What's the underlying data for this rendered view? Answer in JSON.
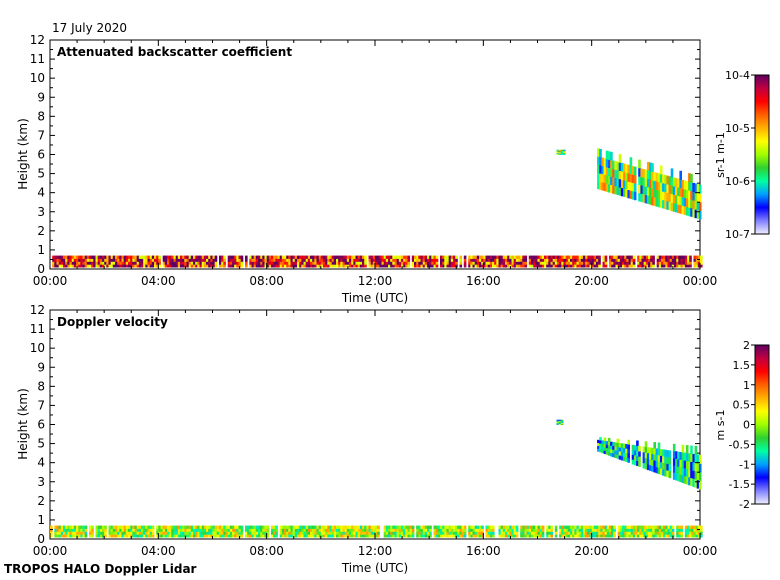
{
  "header": {
    "date": "17 July 2020"
  },
  "footer": {
    "instrument": "TROPOS HALO Doppler Lidar"
  },
  "colors": {
    "rainbow": [
      "#f0f0ff",
      "#7f7fff",
      "#0000ff",
      "#00a0ff",
      "#00ffa0",
      "#30d030",
      "#a0ff00",
      "#ffff00",
      "#ffb000",
      "#ff6000",
      "#ff0000",
      "#c00040",
      "#600060"
    ]
  },
  "chart_data": [
    {
      "type": "heatmap",
      "title": "Attenuated backscatter coefficient",
      "xlabel": "Time (UTC)",
      "ylabel": "Height (km)",
      "xlim": [
        0,
        24
      ],
      "ylim": [
        0,
        12
      ],
      "x_ticks": [
        "00:00",
        "04:00",
        "08:00",
        "12:00",
        "16:00",
        "20:00",
        "00:00"
      ],
      "y_ticks": [
        "0",
        "1",
        "2",
        "3",
        "4",
        "5",
        "6",
        "7",
        "8",
        "9",
        "10",
        "11",
        "12"
      ],
      "colorbar": {
        "scale": "log",
        "label": "sr-1 m-1",
        "range": [
          1e-07,
          0.0001
        ],
        "ticks": [
          "10-7",
          "10-6",
          "10-5",
          "10-4"
        ]
      },
      "features": [
        {
          "name": "boundary layer aerosol",
          "time_range": [
            0,
            24
          ],
          "height_range_km": [
            0.1,
            0.7
          ],
          "log10_value": -4.5
        },
        {
          "name": "cloud layer",
          "time_range": [
            18.7,
            19.0
          ],
          "height_range_km": [
            6.0,
            6.2
          ],
          "log10_value": -5.5
        },
        {
          "name": "descending cloud",
          "time_range": [
            20.2,
            24
          ],
          "height_top_km": [
            5.9,
            4.4
          ],
          "height_base_km": [
            4.2,
            2.6
          ],
          "log10_value": -5.6
        }
      ]
    },
    {
      "type": "heatmap",
      "title": "Doppler velocity",
      "xlabel": "Time (UTC)",
      "ylabel": "Height (km)",
      "xlim": [
        0,
        24
      ],
      "ylim": [
        0,
        12
      ],
      "x_ticks": [
        "00:00",
        "04:00",
        "08:00",
        "12:00",
        "16:00",
        "20:00",
        "00:00"
      ],
      "y_ticks": [
        "0",
        "1",
        "2",
        "3",
        "4",
        "5",
        "6",
        "7",
        "8",
        "9",
        "10",
        "11",
        "12"
      ],
      "colorbar": {
        "scale": "linear",
        "label": "m s-1",
        "range": [
          -2,
          2
        ],
        "ticks": [
          "-2",
          "-1.5",
          "-1",
          "-0.5",
          "0",
          "0.5",
          "1",
          "1.5",
          "2"
        ]
      },
      "features": [
        {
          "name": "boundary layer",
          "time_range": [
            0,
            24
          ],
          "height_range_km": [
            0.1,
            0.7
          ],
          "velocity_ms": 0.0
        },
        {
          "name": "cloud layer",
          "time_range": [
            18.7,
            19.0
          ],
          "height_range_km": [
            6.0,
            6.2
          ],
          "velocity_ms": -0.4
        },
        {
          "name": "descending cloud",
          "time_range": [
            20.2,
            24
          ],
          "height_top_km": [
            5.2,
            4.4
          ],
          "height_base_km": [
            4.6,
            2.6
          ],
          "velocity_ms": -0.6
        }
      ]
    }
  ]
}
